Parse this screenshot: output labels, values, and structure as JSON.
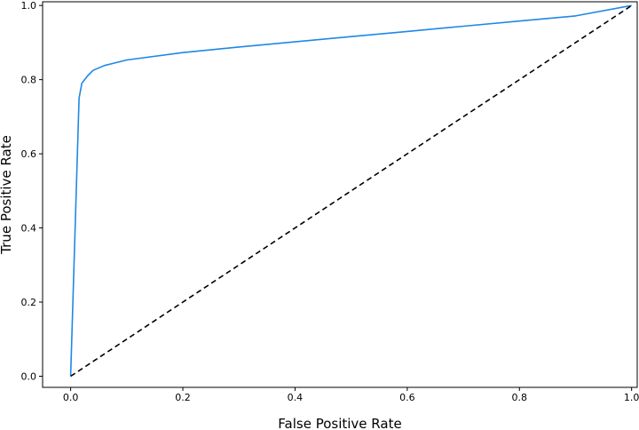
{
  "chart_data": {
    "type": "line",
    "xlabel": "False Positive Rate",
    "ylabel": "True Positive Rate",
    "xlim": [
      -0.05,
      1.01
    ],
    "ylim": [
      -0.03,
      1.01
    ],
    "x_ticks": [
      "0.0",
      "0.2",
      "0.4",
      "0.6",
      "0.8",
      "1.0"
    ],
    "y_ticks": [
      "0.0",
      "0.2",
      "0.4",
      "0.6",
      "0.8",
      "1.0"
    ],
    "grid": false,
    "series": [
      {
        "style": "solid",
        "color": "#1f88e5",
        "points": [
          [
            0.0,
            0.0
          ],
          [
            0.015,
            0.75
          ],
          [
            0.02,
            0.79
          ],
          [
            0.03,
            0.81
          ],
          [
            0.04,
            0.825
          ],
          [
            0.06,
            0.838
          ],
          [
            0.1,
            0.853
          ],
          [
            0.2,
            0.873
          ],
          [
            0.3,
            0.888
          ],
          [
            0.4,
            0.902
          ],
          [
            0.5,
            0.916
          ],
          [
            0.6,
            0.93
          ],
          [
            0.7,
            0.944
          ],
          [
            0.8,
            0.958
          ],
          [
            0.9,
            0.972
          ],
          [
            1.0,
            1.0
          ]
        ]
      },
      {
        "style": "dashed",
        "color": "#000000",
        "points": [
          [
            0.0,
            0.0
          ],
          [
            1.0,
            1.0
          ]
        ]
      }
    ]
  }
}
